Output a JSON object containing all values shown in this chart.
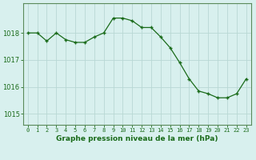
{
  "x": [
    0,
    1,
    2,
    3,
    4,
    5,
    6,
    7,
    8,
    9,
    10,
    11,
    12,
    13,
    14,
    15,
    16,
    17,
    18,
    19,
    20,
    21,
    22,
    23
  ],
  "y": [
    1018.0,
    1018.0,
    1017.7,
    1018.0,
    1017.75,
    1017.65,
    1017.65,
    1017.85,
    1018.0,
    1018.55,
    1018.55,
    1018.45,
    1018.2,
    1018.2,
    1017.85,
    1017.45,
    1016.9,
    1016.3,
    1015.85,
    1015.75,
    1015.6,
    1015.6,
    1015.75,
    1016.3
  ],
  "line_color": "#1a6b1a",
  "marker_color": "#1a6b1a",
  "bg_color": "#d8f0ee",
  "plot_bg_color": "#d8f0ee",
  "grid_color": "#b8d8d4",
  "axis_color": "#1a6b1a",
  "spine_color": "#5a8a5a",
  "title": "Graphe pression niveau de la mer (hPa)",
  "ylim": [
    1014.6,
    1019.1
  ],
  "yticks": [
    1015,
    1016,
    1017,
    1018
  ],
  "xticks": [
    0,
    1,
    2,
    3,
    4,
    5,
    6,
    7,
    8,
    9,
    10,
    11,
    12,
    13,
    14,
    15,
    16,
    17,
    18,
    19,
    20,
    21,
    22,
    23
  ]
}
